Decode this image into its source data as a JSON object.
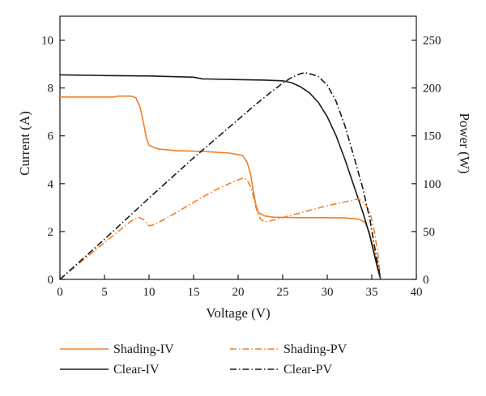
{
  "chart_data": {
    "type": "line",
    "xlabel": "Voltage (V)",
    "ylabel_left": "Current (A)",
    "ylabel_right": "Power (W)",
    "xlim": [
      0,
      40
    ],
    "ylim_left": [
      0,
      11
    ],
    "ylim_right": [
      0,
      275
    ],
    "x_ticks": [
      0,
      5,
      10,
      15,
      20,
      25,
      30,
      35,
      40
    ],
    "y_left_ticks": [
      0,
      2,
      4,
      6,
      8,
      10
    ],
    "y_right_ticks": [
      0,
      50,
      100,
      150,
      200,
      250
    ],
    "grid": false,
    "legend_position": "bottom",
    "series": [
      {
        "name": "Shading-IV",
        "axis": "left",
        "color": "#f07f2a",
        "style": "solid",
        "points": [
          [
            0,
            7.62
          ],
          [
            3,
            7.62
          ],
          [
            6,
            7.62
          ],
          [
            6.5,
            7.66
          ],
          [
            8,
            7.66
          ],
          [
            8.5,
            7.6
          ],
          [
            9,
            7.2
          ],
          [
            9.4,
            6.5
          ],
          [
            9.7,
            5.9
          ],
          [
            10,
            5.6
          ],
          [
            11,
            5.45
          ],
          [
            13,
            5.38
          ],
          [
            16,
            5.35
          ],
          [
            19,
            5.28
          ],
          [
            20.5,
            5.18
          ],
          [
            21,
            4.9
          ],
          [
            21.4,
            4.4
          ],
          [
            21.7,
            3.7
          ],
          [
            22,
            3.1
          ],
          [
            22.3,
            2.78
          ],
          [
            23,
            2.65
          ],
          [
            24,
            2.6
          ],
          [
            27,
            2.58
          ],
          [
            30,
            2.58
          ],
          [
            32,
            2.57
          ],
          [
            33.5,
            2.52
          ],
          [
            34.2,
            2.4
          ],
          [
            34.7,
            2.0
          ],
          [
            35.1,
            1.4
          ],
          [
            35.5,
            0.8
          ],
          [
            35.8,
            0.3
          ],
          [
            36,
            0
          ]
        ]
      },
      {
        "name": "Clear-IV",
        "axis": "left",
        "color": "#1a1a1a",
        "style": "solid",
        "points": [
          [
            0,
            8.55
          ],
          [
            5,
            8.52
          ],
          [
            10,
            8.5
          ],
          [
            15,
            8.45
          ],
          [
            16,
            8.38
          ],
          [
            20,
            8.35
          ],
          [
            23,
            8.33
          ],
          [
            25,
            8.3
          ],
          [
            26,
            8.22
          ],
          [
            27,
            8.05
          ],
          [
            28,
            7.8
          ],
          [
            29,
            7.4
          ],
          [
            30,
            6.8
          ],
          [
            31,
            6.0
          ],
          [
            32,
            5.0
          ],
          [
            33,
            3.9
          ],
          [
            34,
            2.8
          ],
          [
            34.8,
            1.8
          ],
          [
            35.3,
            1.0
          ],
          [
            35.7,
            0.4
          ],
          [
            36,
            0
          ]
        ]
      },
      {
        "name": "Shading-PV",
        "axis": "right",
        "color": "#f07f2a",
        "style": "dashdot",
        "points": [
          [
            0,
            0
          ],
          [
            4,
            31
          ],
          [
            8,
            61
          ],
          [
            8.8,
            65
          ],
          [
            9.5,
            62
          ],
          [
            10,
            56
          ],
          [
            10.5,
            57
          ],
          [
            12,
            64
          ],
          [
            14,
            75
          ],
          [
            16,
            86
          ],
          [
            18,
            96
          ],
          [
            20,
            104
          ],
          [
            20.6,
            106
          ],
          [
            21,
            104
          ],
          [
            21.5,
            95
          ],
          [
            22,
            75
          ],
          [
            22.5,
            63
          ],
          [
            23,
            60
          ],
          [
            24,
            62
          ],
          [
            26,
            67
          ],
          [
            28,
            72
          ],
          [
            30,
            77
          ],
          [
            32,
            81
          ],
          [
            33.5,
            84
          ],
          [
            34.2,
            80
          ],
          [
            34.8,
            70
          ],
          [
            35.3,
            50
          ],
          [
            35.7,
            25
          ],
          [
            36,
            0
          ]
        ]
      },
      {
        "name": "Clear-PV",
        "axis": "right",
        "color": "#1a1a1a",
        "style": "dashdot",
        "points": [
          [
            0,
            0
          ],
          [
            5,
            42
          ],
          [
            10,
            85
          ],
          [
            15,
            127
          ],
          [
            20,
            167
          ],
          [
            22,
            183
          ],
          [
            24,
            198
          ],
          [
            25,
            205
          ],
          [
            26,
            211
          ],
          [
            27,
            215
          ],
          [
            27.5,
            216
          ],
          [
            28,
            215
          ],
          [
            29,
            212
          ],
          [
            30,
            203
          ],
          [
            31,
            186
          ],
          [
            32,
            160
          ],
          [
            33,
            128
          ],
          [
            34,
            95
          ],
          [
            34.8,
            62
          ],
          [
            35.3,
            35
          ],
          [
            35.7,
            14
          ],
          [
            36,
            0
          ]
        ]
      }
    ]
  }
}
